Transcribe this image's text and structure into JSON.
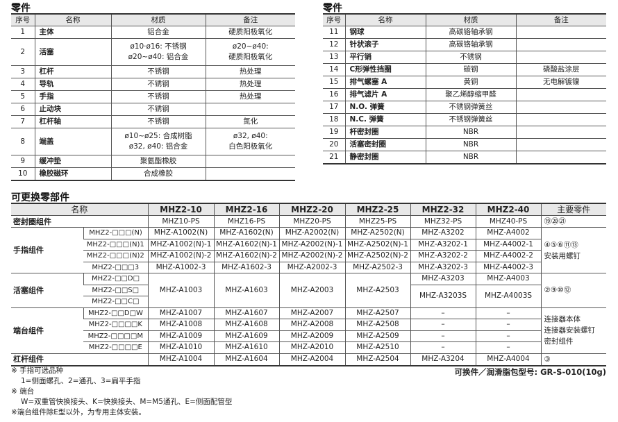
{
  "parts_left": {
    "title": "零件",
    "headers": [
      "序号",
      "名称",
      "材质",
      "备注"
    ],
    "rows": [
      {
        "no": "1",
        "name": "主体",
        "material": "铝合金",
        "note": "硬质阳极氧化"
      },
      {
        "no": "2",
        "name": "活塞",
        "material": "ø10·ø16: 不锈钢\nø20~ø40: 铝合金",
        "note": "ø20~ø40:\n硬质阳极氧化"
      },
      {
        "no": "3",
        "name": "杠杆",
        "material": "不锈钢",
        "note": "热处理"
      },
      {
        "no": "4",
        "name": "导轨",
        "material": "不锈钢",
        "note": "热处理"
      },
      {
        "no": "5",
        "name": "手指",
        "material": "不锈钢",
        "note": "热处理"
      },
      {
        "no": "6",
        "name": "止动块",
        "material": "不锈钢",
        "note": ""
      },
      {
        "no": "7",
        "name": "杠杆轴",
        "material": "不锈钢",
        "note": "氮化"
      },
      {
        "no": "8",
        "name": "端盖",
        "material": "ø10~ø25: 合成树脂\nø32, ø40: 铝合金",
        "note": "ø32, ø40:\n白色阳极氧化"
      },
      {
        "no": "9",
        "name": "缓冲垫",
        "material": "聚氨酯橡胶",
        "note": ""
      },
      {
        "no": "10",
        "name": "橡胶磁环",
        "material": "合成橡胶",
        "note": ""
      }
    ]
  },
  "parts_right": {
    "title": "零件",
    "headers": [
      "序号",
      "名称",
      "材质",
      "备注"
    ],
    "rows": [
      {
        "no": "11",
        "name": "钢球",
        "material": "高碳铬轴承钢",
        "note": ""
      },
      {
        "no": "12",
        "name": "针状滚子",
        "material": "高碳铬轴承钢",
        "note": ""
      },
      {
        "no": "13",
        "name": "平行销",
        "material": "不锈钢",
        "note": ""
      },
      {
        "no": "14",
        "name": "C形弹性挡圈",
        "material": "碳钢",
        "note": "磷酸盐涂层"
      },
      {
        "no": "15",
        "name": "排气螺塞 A",
        "material": "黄铜",
        "note": "无电解镀镍"
      },
      {
        "no": "16",
        "name": "排气滤片 A",
        "material": "聚乙烯醇缩甲醛",
        "note": ""
      },
      {
        "no": "17",
        "name": "N.O. 弹簧",
        "material": "不锈钢弹簧丝",
        "note": ""
      },
      {
        "no": "18",
        "name": "N.C. 弹簧",
        "material": "不锈钢弹簧丝",
        "note": ""
      },
      {
        "no": "19",
        "name": "杆密封圈",
        "material": "NBR",
        "note": ""
      },
      {
        "no": "20",
        "name": "活塞密封圈",
        "material": "NBR",
        "note": ""
      },
      {
        "no": "21",
        "name": "静密封圈",
        "material": "NBR",
        "note": ""
      }
    ]
  },
  "replaceable": {
    "title": "可更换零部件",
    "name_header": "名称",
    "models": [
      "MHZ2-10",
      "MHZ2-16",
      "MHZ2-20",
      "MHZ2-25",
      "MHZ2-32",
      "MHZ2-40"
    ],
    "parts_header": "主要零件",
    "seal": {
      "name": "密封圈组件",
      "values": [
        "MHZ10-PS",
        "MHZ16-PS",
        "MHZ20-PS",
        "MHZ25-PS",
        "MHZ32-PS",
        "MHZ40-PS"
      ],
      "parts": "⑲⑳㉑"
    },
    "finger": {
      "name": "手指组件",
      "variants": [
        "MHZ2-□□□(N)",
        "MHZ2-□□□(N)1",
        "MHZ2-□□□(N)2",
        "MHZ2-□□□3"
      ],
      "values": [
        [
          "MHZ-A1002(N)",
          "MHZ-A1602(N)",
          "MHZ-A2002(N)",
          "MHZ-A2502(N)",
          "MHZ-A3202",
          "MHZ-A4002"
        ],
        [
          "MHZ-A1002(N)-1",
          "MHZ-A1602(N)-1",
          "MHZ-A2002(N)-1",
          "MHZ-A2502(N)-1",
          "MHZ-A3202-1",
          "MHZ-A4002-1"
        ],
        [
          "MHZ-A1002(N)-2",
          "MHZ-A1602(N)-2",
          "MHZ-A2002(N)-2",
          "MHZ-A2502(N)-2",
          "MHZ-A3202-2",
          "MHZ-A4002-2"
        ],
        [
          "MHZ-A1002-3",
          "MHZ-A1602-3",
          "MHZ-A2002-3",
          "MHZ-A2502-3",
          "MHZ-A3202-3",
          "MHZ-A4002-3"
        ]
      ],
      "parts": "④⑤⑥⑪⑬\n安装用螺钉"
    },
    "piston": {
      "name": "活塞组件",
      "variants": [
        "MHZ2-□□D□",
        "MHZ2-□□S□",
        "MHZ2-□□C□"
      ],
      "values": [
        "MHZ-A1003",
        "MHZ-A1603",
        "MHZ-A2003",
        "MHZ-A2503"
      ],
      "values_32": [
        "MHZ-A3203",
        "MHZ-A3203S"
      ],
      "values_40": [
        "MHZ-A4003",
        "MHZ-A4003S"
      ],
      "parts": "②⑨⑩⑫"
    },
    "end": {
      "name": "端台组件",
      "variants": [
        "MHZ2-□□D□W",
        "MHZ2-□□□□K",
        "MHZ2-□□□□M",
        "MHZ2-□□□□E"
      ],
      "values": [
        [
          "MHZ-A1007",
          "MHZ-A1607",
          "MHZ-A2007",
          "MHZ-A2507",
          "–",
          "–"
        ],
        [
          "MHZ-A1008",
          "MHZ-A1608",
          "MHZ-A2008",
          "MHZ-A2508",
          "–",
          "–"
        ],
        [
          "MHZ-A1009",
          "MHZ-A1609",
          "MHZ-A2009",
          "MHZ-A2509",
          "–",
          "–"
        ],
        [
          "MHZ-A1010",
          "MHZ-A1610",
          "MHZ-A2010",
          "MHZ-A2510",
          "–",
          "–"
        ]
      ],
      "parts": "连接器本体\n连接器安装螺钉\n密封组件"
    },
    "lever": {
      "name": "杠杆组件",
      "values": [
        "MHZ-A1004",
        "MHZ-A1604",
        "MHZ-A2004",
        "MHZ-A2504",
        "MHZ-A3204",
        "MHZ-A4004"
      ],
      "parts": "③"
    }
  },
  "notes": [
    "※ 手指可选品种",
    "1=侧面螺孔、2=通孔、3=扁平手指",
    "※ 端台",
    "W=双重管快换接头、K=快换接头、M=M5通孔、E=侧面配管型",
    "※端台组件除E型以外，为专用主体安装。"
  ],
  "grease_note": "可换件／润滑脂包型号: GR-S-010(10g)"
}
